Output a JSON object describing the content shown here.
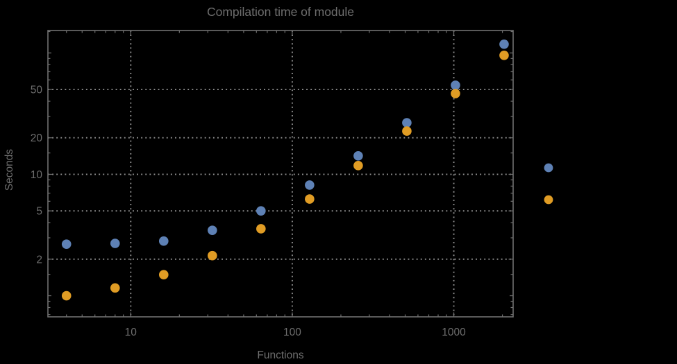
{
  "colors": {
    "background": "#000000",
    "text": "#6e6e6e",
    "frame": "#707070",
    "grid": "#8f8f8f"
  },
  "chart_data": {
    "type": "scatter",
    "title": "Compilation time of module",
    "xlabel": "Functions",
    "ylabel": "Seconds",
    "x_scale": "log",
    "y_scale": "log",
    "grid": "dotted",
    "x_range": [
      3.07,
      2330
    ],
    "y_range": [
      0.67,
      153
    ],
    "x_gridlines": [
      10,
      100,
      1000
    ],
    "y_gridlines": [
      2,
      5,
      10,
      20,
      50
    ],
    "x_major_ticks": [
      {
        "value": 10,
        "label": "10"
      },
      {
        "value": 100,
        "label": "100"
      },
      {
        "value": 1000,
        "label": "1000"
      }
    ],
    "x_minor_ticks": [
      4,
      5,
      6,
      7,
      8,
      9,
      20,
      30,
      40,
      50,
      60,
      70,
      80,
      90,
      200,
      300,
      400,
      500,
      600,
      700,
      800,
      900,
      2000
    ],
    "y_major_ticks": [
      {
        "value": 2,
        "label": "2"
      },
      {
        "value": 5,
        "label": "5"
      },
      {
        "value": 10,
        "label": "10"
      },
      {
        "value": 20,
        "label": "20"
      },
      {
        "value": 50,
        "label": "50"
      }
    ],
    "y_mid_ticks": [
      1,
      100
    ],
    "y_minor_ticks": [
      0.7,
      0.8,
      0.9,
      1.5,
      3,
      4,
      6,
      7,
      8,
      9,
      15,
      30,
      40,
      60,
      70,
      80,
      90,
      150
    ],
    "x": [
      4,
      8,
      16,
      32,
      64,
      128,
      256,
      512,
      1024,
      2048
    ],
    "series": [
      {
        "name": "series-1-blue",
        "color": "#5E81B5",
        "values": [
          2.66,
          2.7,
          2.82,
          3.46,
          5.0,
          8.16,
          14.2,
          26.6,
          54.2,
          118
        ]
      },
      {
        "name": "series-2-orange",
        "color": "#E09C24",
        "values": [
          1.0,
          1.16,
          1.49,
          2.14,
          3.56,
          6.26,
          11.8,
          22.7,
          46.3,
          95.5
        ]
      }
    ],
    "legend": {
      "position": "right-of-plot",
      "markers": [
        {
          "name": "legend-marker-blue",
          "color": "#5E81B5"
        },
        {
          "name": "legend-marker-orange",
          "color": "#E09C24"
        }
      ]
    }
  }
}
